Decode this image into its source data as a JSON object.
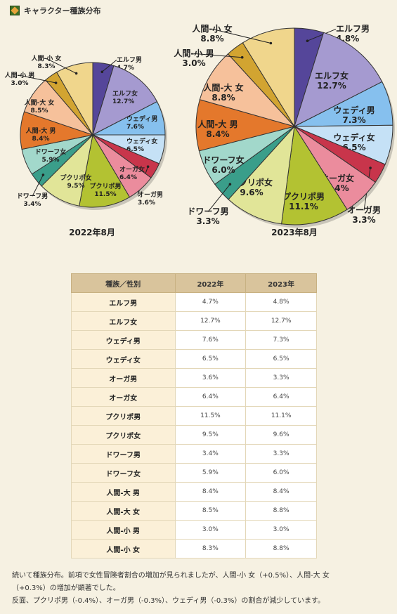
{
  "header": {
    "title": "キャラクター種族分布",
    "icon": "section-icon"
  },
  "chart_data": [
    {
      "type": "pie",
      "title": "2022年8月",
      "categories": [
        "エルフ男",
        "エルフ女",
        "ウェディ男",
        "ウェディ女",
        "オーガ男",
        "オーガ女",
        "プクリポ男",
        "プクリポ女",
        "ドワーフ男",
        "ドワーフ女",
        "人間-大 男",
        "人間-大 女",
        "人間-小 男",
        "人間-小 女"
      ],
      "values": [
        4.7,
        12.7,
        7.6,
        6.5,
        3.6,
        6.4,
        11.5,
        9.5,
        3.4,
        5.9,
        8.4,
        8.5,
        3.0,
        8.3
      ],
      "labels": [
        "4.7%",
        "12.7%",
        "7.6%",
        "6.5%",
        "3.6%",
        "6.4%",
        "11.5%",
        "9.5%",
        "3.4%",
        "5.9%",
        "8.4%",
        "8.5%",
        "3.0%",
        "8.3%"
      ],
      "colors": [
        "#55469a",
        "#a59ad0",
        "#86c0ee",
        "#c5e1f6",
        "#c8354b",
        "#eb8c9d",
        "#b3c232",
        "#e1e598",
        "#3a9e8a",
        "#a2d8cb",
        "#e4782c",
        "#f6c19b",
        "#d2a431",
        "#f0d68c"
      ]
    },
    {
      "type": "pie",
      "title": "2023年8月",
      "categories": [
        "エルフ男",
        "エルフ女",
        "ウェディ男",
        "ウェディ女",
        "オーガ男",
        "オーガ女",
        "プクリポ男",
        "プクリポ女",
        "ドワーフ男",
        "ドワーフ女",
        "人間-大 男",
        "人間-大 女",
        "人間-小 男",
        "人間-小 女"
      ],
      "values": [
        4.8,
        12.7,
        7.3,
        6.5,
        3.3,
        6.4,
        11.1,
        9.6,
        3.3,
        6.0,
        8.4,
        8.8,
        3.0,
        8.8
      ],
      "labels": [
        "4.8%",
        "12.7%",
        "7.3%",
        "6.5%",
        "3.3%",
        "6.4%",
        "11.1%",
        "9.6%",
        "3.3%",
        "6.0%",
        "8.4%",
        "8.8%",
        "3.0%",
        "8.8%"
      ],
      "colors": [
        "#55469a",
        "#a59ad0",
        "#86c0ee",
        "#c5e1f6",
        "#c8354b",
        "#eb8c9d",
        "#b3c232",
        "#e1e598",
        "#3a9e8a",
        "#a2d8cb",
        "#e4782c",
        "#f6c19b",
        "#d2a431",
        "#f0d68c"
      ]
    }
  ],
  "table": {
    "headers": [
      "種族／性別",
      "2022年",
      "2023年"
    ],
    "rows": [
      [
        "エルフ男",
        "4.7%",
        "4.8%"
      ],
      [
        "エルフ女",
        "12.7%",
        "12.7%"
      ],
      [
        "ウェディ男",
        "7.6%",
        "7.3%"
      ],
      [
        "ウェディ女",
        "6.5%",
        "6.5%"
      ],
      [
        "オーガ男",
        "3.6%",
        "3.3%"
      ],
      [
        "オーガ女",
        "6.4%",
        "6.4%"
      ],
      [
        "プクリポ男",
        "11.5%",
        "11.1%"
      ],
      [
        "プクリポ女",
        "9.5%",
        "9.6%"
      ],
      [
        "ドワーフ男",
        "3.4%",
        "3.3%"
      ],
      [
        "ドワーフ女",
        "5.9%",
        "6.0%"
      ],
      [
        "人間-大 男",
        "8.4%",
        "8.4%"
      ],
      [
        "人間-大 女",
        "8.5%",
        "8.8%"
      ],
      [
        "人間-小 男",
        "3.0%",
        "3.0%"
      ],
      [
        "人間-小 女",
        "8.3%",
        "8.8%"
      ]
    ]
  },
  "notes": [
    "続いて種族分布。前項で女性冒険者割合の増加が見られましたが、人間-小 女（+0.5%）、人間-大 女",
    "（+0.3%）の増加が顕著でした。",
    "反面、プクリポ男（-0.4%）、オーガ男（-0.3%）、ウェディ男（-0.3%）の割合が減少しています。"
  ]
}
